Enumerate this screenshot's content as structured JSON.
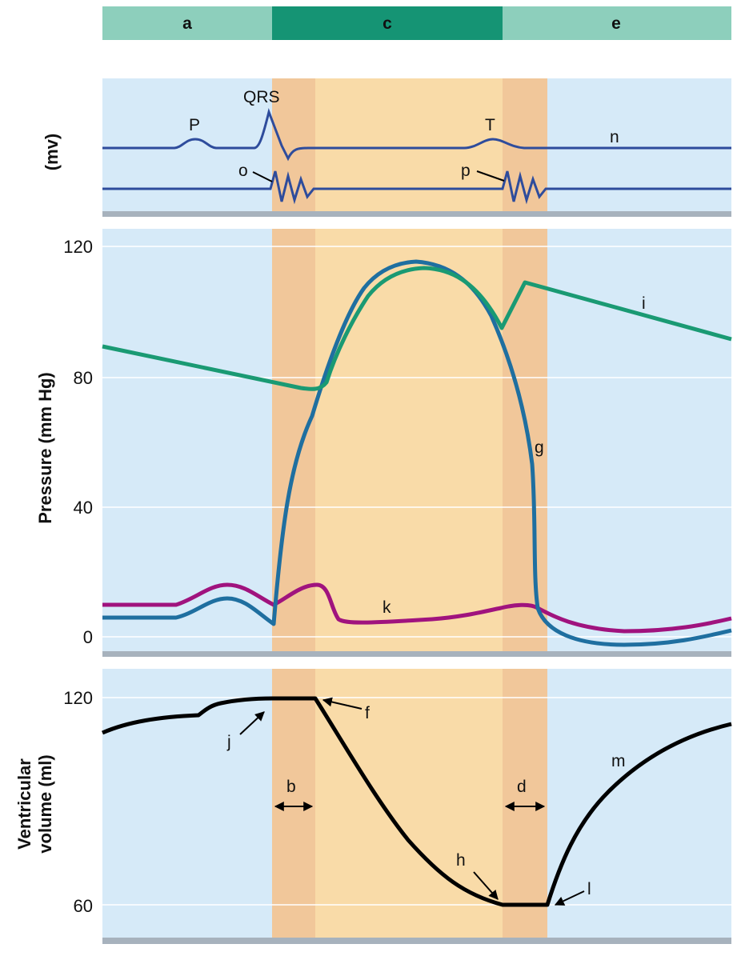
{
  "colors": {
    "band_light": "#8dcfbc",
    "band_dark": "#159474",
    "panel_bg": "#d6eaf8",
    "isovolumic": "#f1c79a",
    "ejection": "#f9dba8",
    "floor": "#a7b2bd",
    "ecg": "#2e4c9c",
    "aortic": "#1a9a73",
    "ventricular_pressure": "#1f6fa0",
    "atrial_pressure": "#a0137e",
    "volume": "#000000",
    "gridline": "#ffffff"
  },
  "phase_bands": [
    {
      "key": "a",
      "label": "a",
      "shade": "light"
    },
    {
      "key": "c",
      "label": "c",
      "shade": "dark"
    },
    {
      "key": "e",
      "label": "e",
      "shade": "light"
    }
  ],
  "ecg_panel": {
    "axis_title": "(mv)",
    "wave_labels": {
      "p": "P",
      "qrs": "QRS",
      "t": "T"
    },
    "trace_label": "n",
    "sound_labels": {
      "first": "o",
      "second": "p"
    }
  },
  "pressure_panel": {
    "axis_title": "Pressure (mm Hg)",
    "ticks": [
      "120",
      "80",
      "40",
      "0"
    ],
    "labels": {
      "aortic": "i",
      "ventricular": "g",
      "atrial": "k"
    }
  },
  "volume_panel": {
    "axis_title_lines": [
      "Ventricular",
      "volume (ml)"
    ],
    "ticks": [
      "120",
      "60"
    ],
    "labels": {
      "j": "j",
      "f": "f",
      "h": "h",
      "l": "l",
      "m": "m",
      "b": "b",
      "d": "d"
    }
  }
}
